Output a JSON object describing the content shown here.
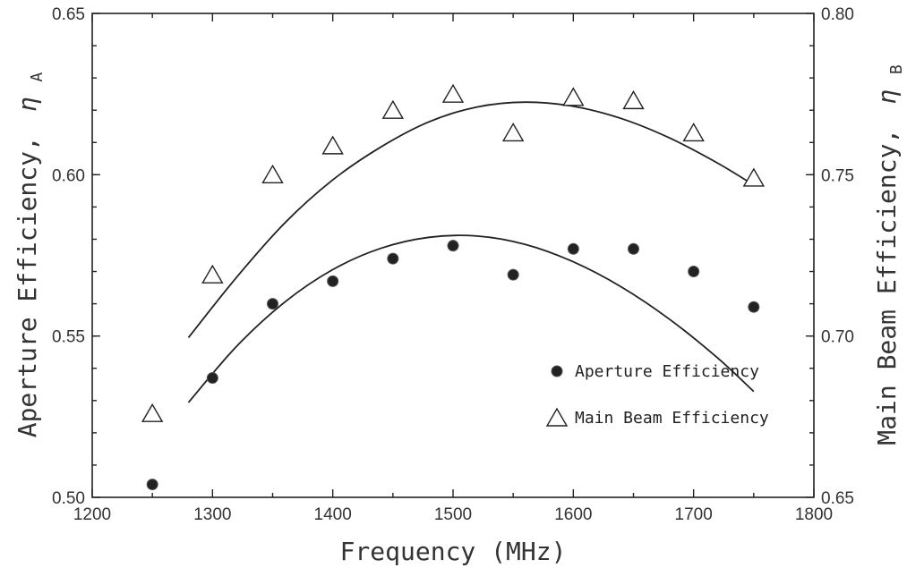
{
  "chart_data": {
    "type": "scatter",
    "title": "",
    "xlabel": "Frequency (MHz)",
    "ylabel_left": "Aperture Efficiency,",
    "ylabel_left_symbol": "η",
    "ylabel_left_sub": "A",
    "ylabel_right": "Main Beam Efficiency,",
    "ylabel_right_symbol": "η",
    "ylabel_right_sub": "B",
    "xlim": [
      1200,
      1800
    ],
    "ylim_left": [
      0.5,
      0.65
    ],
    "ylim_right": [
      0.65,
      0.8
    ],
    "x_ticks": [
      "1200",
      "1300",
      "1400",
      "1500",
      "1600",
      "1700",
      "1800"
    ],
    "y_left_ticks": [
      "0.50",
      "0.55",
      "0.60",
      "0.65"
    ],
    "y_right_ticks": [
      "0.65",
      "0.70",
      "0.75",
      "0.80"
    ],
    "grid": false,
    "legend_position": "bottom-right",
    "series": [
      {
        "name": "Aperture Efficiency",
        "marker": "filled-circle",
        "axis": "left",
        "x": [
          1250,
          1300,
          1350,
          1400,
          1450,
          1500,
          1550,
          1600,
          1650,
          1700,
          1750
        ],
        "y": [
          0.504,
          0.537,
          0.56,
          0.567,
          0.574,
          0.578,
          0.569,
          0.577,
          0.577,
          0.57,
          0.559
        ],
        "fit_x": [
          1280,
          1320,
          1360,
          1400,
          1440,
          1480,
          1520,
          1560,
          1600,
          1640,
          1680,
          1720,
          1750
        ],
        "fit_y": [
          0.5294,
          0.5468,
          0.5605,
          0.5706,
          0.5772,
          0.5806,
          0.581,
          0.5784,
          0.573,
          0.5652,
          0.5552,
          0.5432,
          0.5328
        ]
      },
      {
        "name": "Main Beam Efficiency",
        "marker": "open-triangle",
        "axis": "right",
        "x": [
          1250,
          1300,
          1350,
          1400,
          1450,
          1500,
          1550,
          1600,
          1650,
          1700,
          1750
        ],
        "y": [
          0.676,
          0.719,
          0.75,
          0.759,
          0.77,
          0.775,
          0.763,
          0.774,
          0.773,
          0.763,
          0.749
        ],
        "fit_x": [
          1280,
          1320,
          1360,
          1400,
          1440,
          1480,
          1520,
          1560,
          1600,
          1640,
          1680,
          1720,
          1750
        ],
        "fit_y": [
          0.6995,
          0.7182,
          0.735,
          0.7484,
          0.7586,
          0.7664,
          0.771,
          0.7725,
          0.7712,
          0.7674,
          0.7614,
          0.7536,
          0.7468
        ]
      }
    ]
  }
}
